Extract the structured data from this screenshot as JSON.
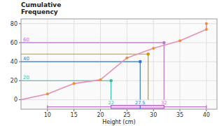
{
  "chart_data": {
    "type": "line",
    "title": "Cumulative\nFrequency",
    "xlabel": "Height (cm)",
    "series": [
      {
        "type": "line",
        "color": "#e890b8",
        "x": [
          5,
          10,
          15,
          20,
          25,
          30,
          35,
          40,
          40
        ],
        "values": [
          0,
          6,
          17,
          21,
          44,
          54,
          62,
          74,
          80
        ]
      },
      {
        "type": "scatter",
        "color": "#e89030",
        "x": [
          10,
          15,
          20,
          25,
          30,
          35,
          40,
          40
        ],
        "values": [
          6,
          17,
          21,
          44,
          54,
          62,
          74,
          80
        ]
      }
    ],
    "quartiles": [
      {
        "x": 22,
        "y": 20,
        "color": "#33bbaa"
      },
      {
        "x": 27.5,
        "y": 40,
        "color": "#3377cc"
      },
      {
        "x": 32,
        "y": 60,
        "color": "#bb77cc"
      }
    ],
    "percentile": {
      "x": 29,
      "y": 48,
      "color": "#cc9900"
    },
    "box": {
      "whisker_low": 10,
      "q1": 22,
      "median": 27.5,
      "q3": 32,
      "whisker_high": 40,
      "color": "#e8c8e8",
      "edge_color": "#aa55bb"
    },
    "xlim": [
      5,
      42
    ],
    "ylim": [
      -10,
      85
    ],
    "xticks": [
      10,
      15,
      20,
      25,
      30,
      35,
      40
    ],
    "yticks": [
      0,
      20,
      40,
      60,
      80
    ],
    "grid": true
  }
}
